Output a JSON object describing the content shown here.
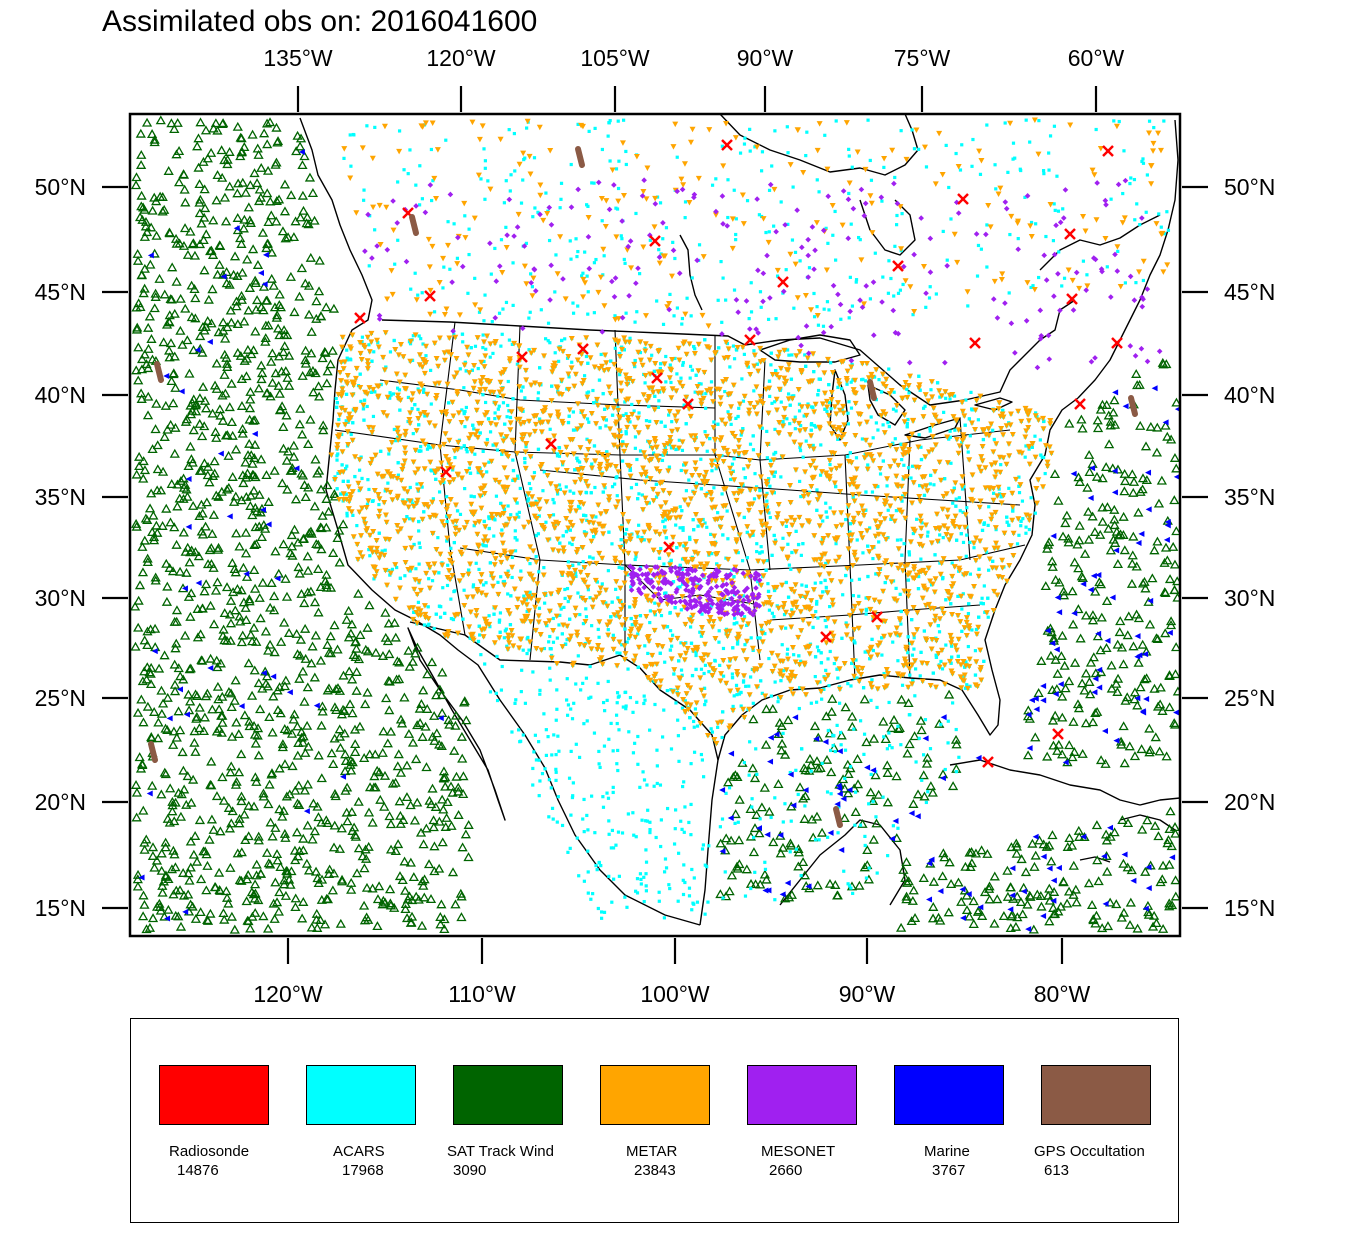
{
  "title": "Assimilated obs on: 2016041600",
  "top_lon_labels": [
    "135°W",
    "120°W",
    "105°W",
    "90°W",
    "75°W",
    "60°W"
  ],
  "bottom_lon_labels": [
    "120°W",
    "110°W",
    "100°W",
    "90°W",
    "80°W"
  ],
  "lat_labels": [
    "50°N",
    "45°N",
    "40°N",
    "35°N",
    "30°N",
    "25°N",
    "20°N",
    "15°N"
  ],
  "legend": [
    {
      "label": "Radiosonde",
      "count": "14876",
      "color": "#ff0000"
    },
    {
      "label": "ACARS",
      "count": "17968",
      "color": "#00ffff"
    },
    {
      "label": "SAT Track Wind",
      "count": "3090",
      "color": "#006400"
    },
    {
      "label": "METAR",
      "count": "23843",
      "color": "#ffa500"
    },
    {
      "label": "MESONET",
      "count": "2660",
      "color": "#a020f0"
    },
    {
      "label": "Marine",
      "count": "3767",
      "color": "#0000ff"
    },
    {
      "label": "GPS Occultation",
      "count": "613",
      "color": "#8b5a45"
    }
  ],
  "symbols": {
    "Radiosonde": "red-x",
    "ACARS": "cyan-square",
    "SAT Track Wind": "green-triangle-up",
    "METAR": "orange-triangle-down",
    "MESONET": "purple-diamond",
    "Marine": "blue-triangle-left",
    "GPS Occultation": "brown-segment"
  }
}
